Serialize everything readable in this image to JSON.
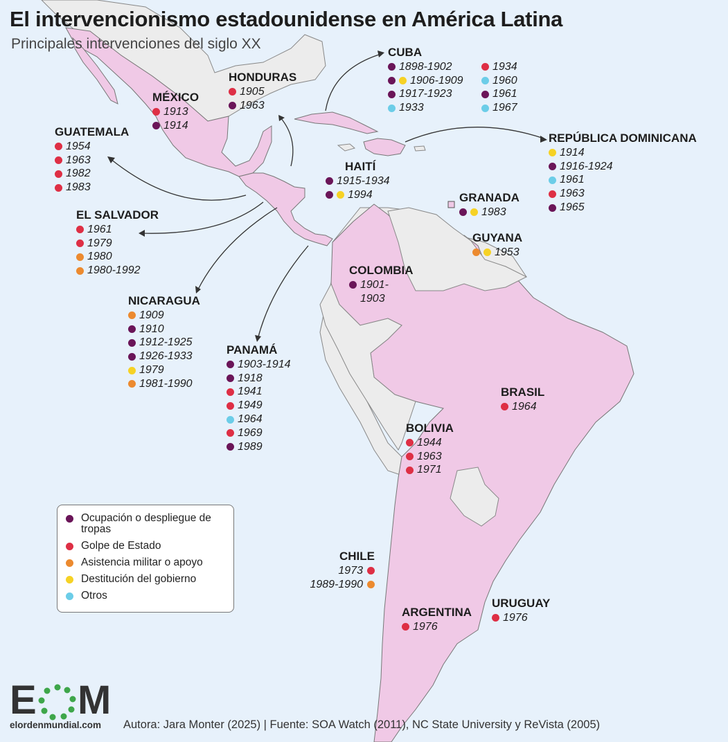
{
  "title": "El intervencionismo estadounidense en América Latina",
  "subtitle": "Principales intervenciones del siglo XX",
  "legend": [
    {
      "key": "ocupacion",
      "label": "Ocupación o despliegue de tropas",
      "color": "#6a1558"
    },
    {
      "key": "golpe",
      "label": "Golpe de Estado",
      "color": "#de2f45"
    },
    {
      "key": "asistencia",
      "label": "Asistencia militar o apoyo",
      "color": "#ec8a2f"
    },
    {
      "key": "destitucion",
      "label": "Destitución del gobierno",
      "color": "#f6d225"
    },
    {
      "key": "otros",
      "label": "Otros",
      "color": "#6ccde8"
    }
  ],
  "countries": {
    "mexico": {
      "name": "MÉXICO",
      "items": [
        {
          "year": "1913",
          "types": [
            "golpe"
          ]
        },
        {
          "year": "1914",
          "types": [
            "ocupacion"
          ]
        }
      ]
    },
    "guatemala": {
      "name": "GUATEMALA",
      "items": [
        {
          "year": "1954",
          "types": [
            "golpe"
          ]
        },
        {
          "year": "1963",
          "types": [
            "golpe"
          ]
        },
        {
          "year": "1982",
          "types": [
            "golpe"
          ]
        },
        {
          "year": "1983",
          "types": [
            "golpe"
          ]
        }
      ]
    },
    "honduras": {
      "name": "HONDURAS",
      "items": [
        {
          "year": "1905",
          "types": [
            "golpe"
          ]
        },
        {
          "year": "1963",
          "types": [
            "ocupacion"
          ]
        }
      ]
    },
    "cuba": {
      "name": "CUBA",
      "columns": [
        [
          {
            "year": "1898-1902",
            "types": [
              "ocupacion"
            ]
          },
          {
            "year": "1906-1909",
            "types": [
              "ocupacion",
              "destitucion"
            ]
          },
          {
            "year": "1917-1923",
            "types": [
              "ocupacion"
            ]
          },
          {
            "year": "1933",
            "types": [
              "otros"
            ]
          }
        ],
        [
          {
            "year": "1934",
            "types": [
              "golpe"
            ]
          },
          {
            "year": "1960",
            "types": [
              "otros"
            ]
          },
          {
            "year": "1961",
            "types": [
              "ocupacion"
            ]
          },
          {
            "year": "1967",
            "types": [
              "otros"
            ]
          }
        ]
      ]
    },
    "dominicana": {
      "name": "REPÚBLICA DOMINICANA",
      "items": [
        {
          "year": "1914",
          "types": [
            "destitucion"
          ]
        },
        {
          "year": "1916-1924",
          "types": [
            "ocupacion"
          ]
        },
        {
          "year": "1961",
          "types": [
            "otros"
          ]
        },
        {
          "year": "1963",
          "types": [
            "golpe"
          ]
        },
        {
          "year": "1965",
          "types": [
            "ocupacion"
          ]
        }
      ]
    },
    "haiti": {
      "name": "HAITÍ",
      "items": [
        {
          "year": "1915-1934",
          "types": [
            "ocupacion"
          ]
        },
        {
          "year": "1994",
          "types": [
            "ocupacion",
            "destitucion"
          ]
        }
      ]
    },
    "granada": {
      "name": "GRANADA",
      "items": [
        {
          "year": "1983",
          "types": [
            "ocupacion",
            "destitucion"
          ]
        }
      ]
    },
    "guyana": {
      "name": "GUYANA",
      "items": [
        {
          "year": "1953",
          "types": [
            "asistencia",
            "destitucion"
          ]
        }
      ]
    },
    "salvador": {
      "name": "EL SALVADOR",
      "items": [
        {
          "year": "1961",
          "types": [
            "golpe"
          ]
        },
        {
          "year": "1979",
          "types": [
            "golpe"
          ]
        },
        {
          "year": "1980",
          "types": [
            "asistencia"
          ]
        },
        {
          "year": "1980-1992",
          "types": [
            "asistencia"
          ]
        }
      ]
    },
    "colombia": {
      "name": "COLOMBIA",
      "items": [
        {
          "year": "1901-",
          "types": [
            "ocupacion"
          ]
        },
        {
          "year": "1903",
          "types": []
        }
      ]
    },
    "nicaragua": {
      "name": "NICARAGUA",
      "items": [
        {
          "year": "1909",
          "types": [
            "asistencia"
          ]
        },
        {
          "year": "1910",
          "types": [
            "ocupacion"
          ]
        },
        {
          "year": "1912-1925",
          "types": [
            "ocupacion"
          ]
        },
        {
          "year": "1926-1933",
          "types": [
            "ocupacion"
          ]
        },
        {
          "year": "1979",
          "types": [
            "destitucion"
          ]
        },
        {
          "year": "1981-1990",
          "types": [
            "asistencia"
          ]
        }
      ]
    },
    "panama": {
      "name": "PANAMÁ",
      "items": [
        {
          "year": "1903-1914",
          "types": [
            "ocupacion"
          ]
        },
        {
          "year": "1918",
          "types": [
            "ocupacion"
          ]
        },
        {
          "year": "1941",
          "types": [
            "golpe"
          ]
        },
        {
          "year": "1949",
          "types": [
            "golpe"
          ]
        },
        {
          "year": "1964",
          "types": [
            "otros"
          ]
        },
        {
          "year": "1969",
          "types": [
            "golpe"
          ]
        },
        {
          "year": "1989",
          "types": [
            "ocupacion"
          ]
        }
      ]
    },
    "brasil": {
      "name": "BRASIL",
      "items": [
        {
          "year": "1964",
          "types": [
            "golpe"
          ]
        }
      ]
    },
    "bolivia": {
      "name": "BOLIVIA",
      "items": [
        {
          "year": "1944",
          "types": [
            "golpe"
          ]
        },
        {
          "year": "1963",
          "types": [
            "golpe"
          ]
        },
        {
          "year": "1971",
          "types": [
            "golpe"
          ]
        }
      ]
    },
    "chile": {
      "name": "CHILE",
      "items": [
        {
          "year": "1973",
          "types": [
            "golpe"
          ]
        },
        {
          "year": "1989-1990",
          "types": [
            "asistencia"
          ]
        }
      ]
    },
    "uruguay": {
      "name": "URUGUAY",
      "items": [
        {
          "year": "1976",
          "types": [
            "golpe"
          ]
        }
      ]
    },
    "argentina": {
      "name": "ARGENTINA",
      "items": [
        {
          "year": "1976",
          "types": [
            "golpe"
          ]
        }
      ]
    }
  },
  "logo": {
    "letters": "EOM",
    "url": "elordenmundial.com"
  },
  "footer": "Autora: Jara Monter (2025) | Fuente: SOA Watch (2011), NC State University y ReVista (2005)",
  "colors": {
    "ocean": "#e7f1fb",
    "intervened": "#f0c9e6",
    "other_land": "#ececec",
    "border": "#555555"
  }
}
